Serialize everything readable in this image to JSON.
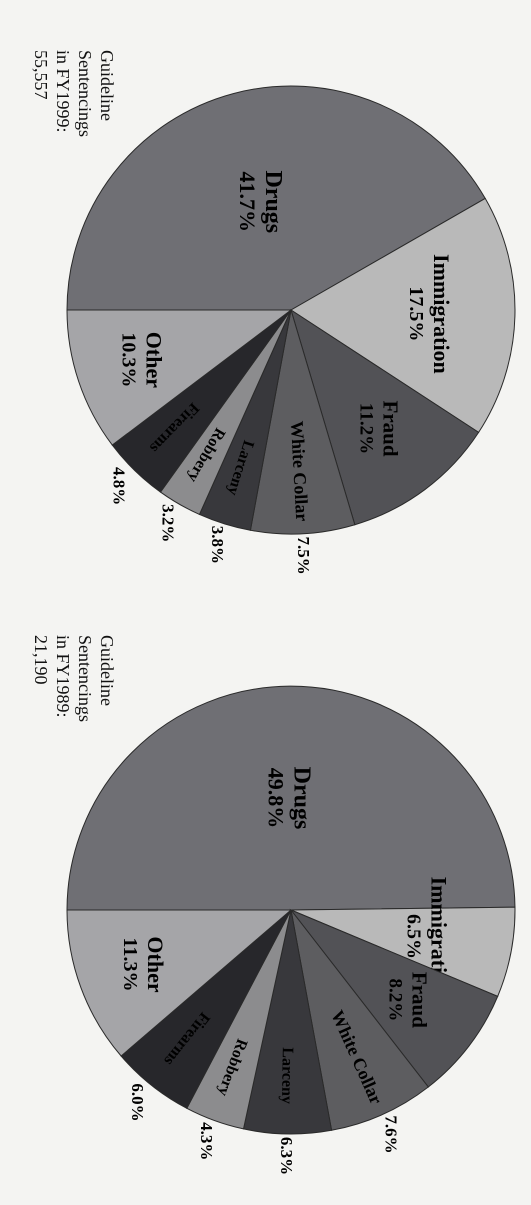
{
  "chart_data": [
    {
      "type": "pie",
      "title": "FY1999",
      "note_lines": [
        "Guideline",
        "Sentencings",
        "in FY1999:",
        "55,557"
      ],
      "series": [
        {
          "label": "Drugs",
          "value": 41.7,
          "color": "#6f6f74"
        },
        {
          "label": "Immigration",
          "value": 17.5,
          "color": "#b9b9b9"
        },
        {
          "label": "Fraud",
          "value": 11.2,
          "color": "#525256"
        },
        {
          "label": "White Collar",
          "value": 7.5,
          "color": "#5d5d60"
        },
        {
          "label": "Larceny",
          "value": 3.8,
          "color": "#38383c"
        },
        {
          "label": "Robbery",
          "value": 3.2,
          "color": "#8c8c8e"
        },
        {
          "label": "Firearms",
          "value": 4.8,
          "color": "#27272b"
        },
        {
          "label": "Other",
          "value": 10.3,
          "color": "#a5a5a8"
        }
      ]
    },
    {
      "type": "pie",
      "title": "FY1989",
      "note_lines": [
        "Guideline",
        "Sentencings",
        "in FY1989:",
        "21,190"
      ],
      "series": [
        {
          "label": "Drugs",
          "value": 49.8,
          "color": "#6f6f74"
        },
        {
          "label": "Immigration",
          "value": 6.5,
          "color": "#b9b9b9"
        },
        {
          "label": "Fraud",
          "value": 8.2,
          "color": "#525256"
        },
        {
          "label": "White Collar",
          "value": 7.6,
          "color": "#5d5d60"
        },
        {
          "label": "Larceny",
          "value": 6.3,
          "color": "#38383c"
        },
        {
          "label": "Robbery",
          "value": 4.3,
          "color": "#8c8c8e"
        },
        {
          "label": "Firearms",
          "value": 6.0,
          "color": "#27272b"
        },
        {
          "label": "Other",
          "value": 11.3,
          "color": "#a5a5a8"
        }
      ]
    }
  ]
}
